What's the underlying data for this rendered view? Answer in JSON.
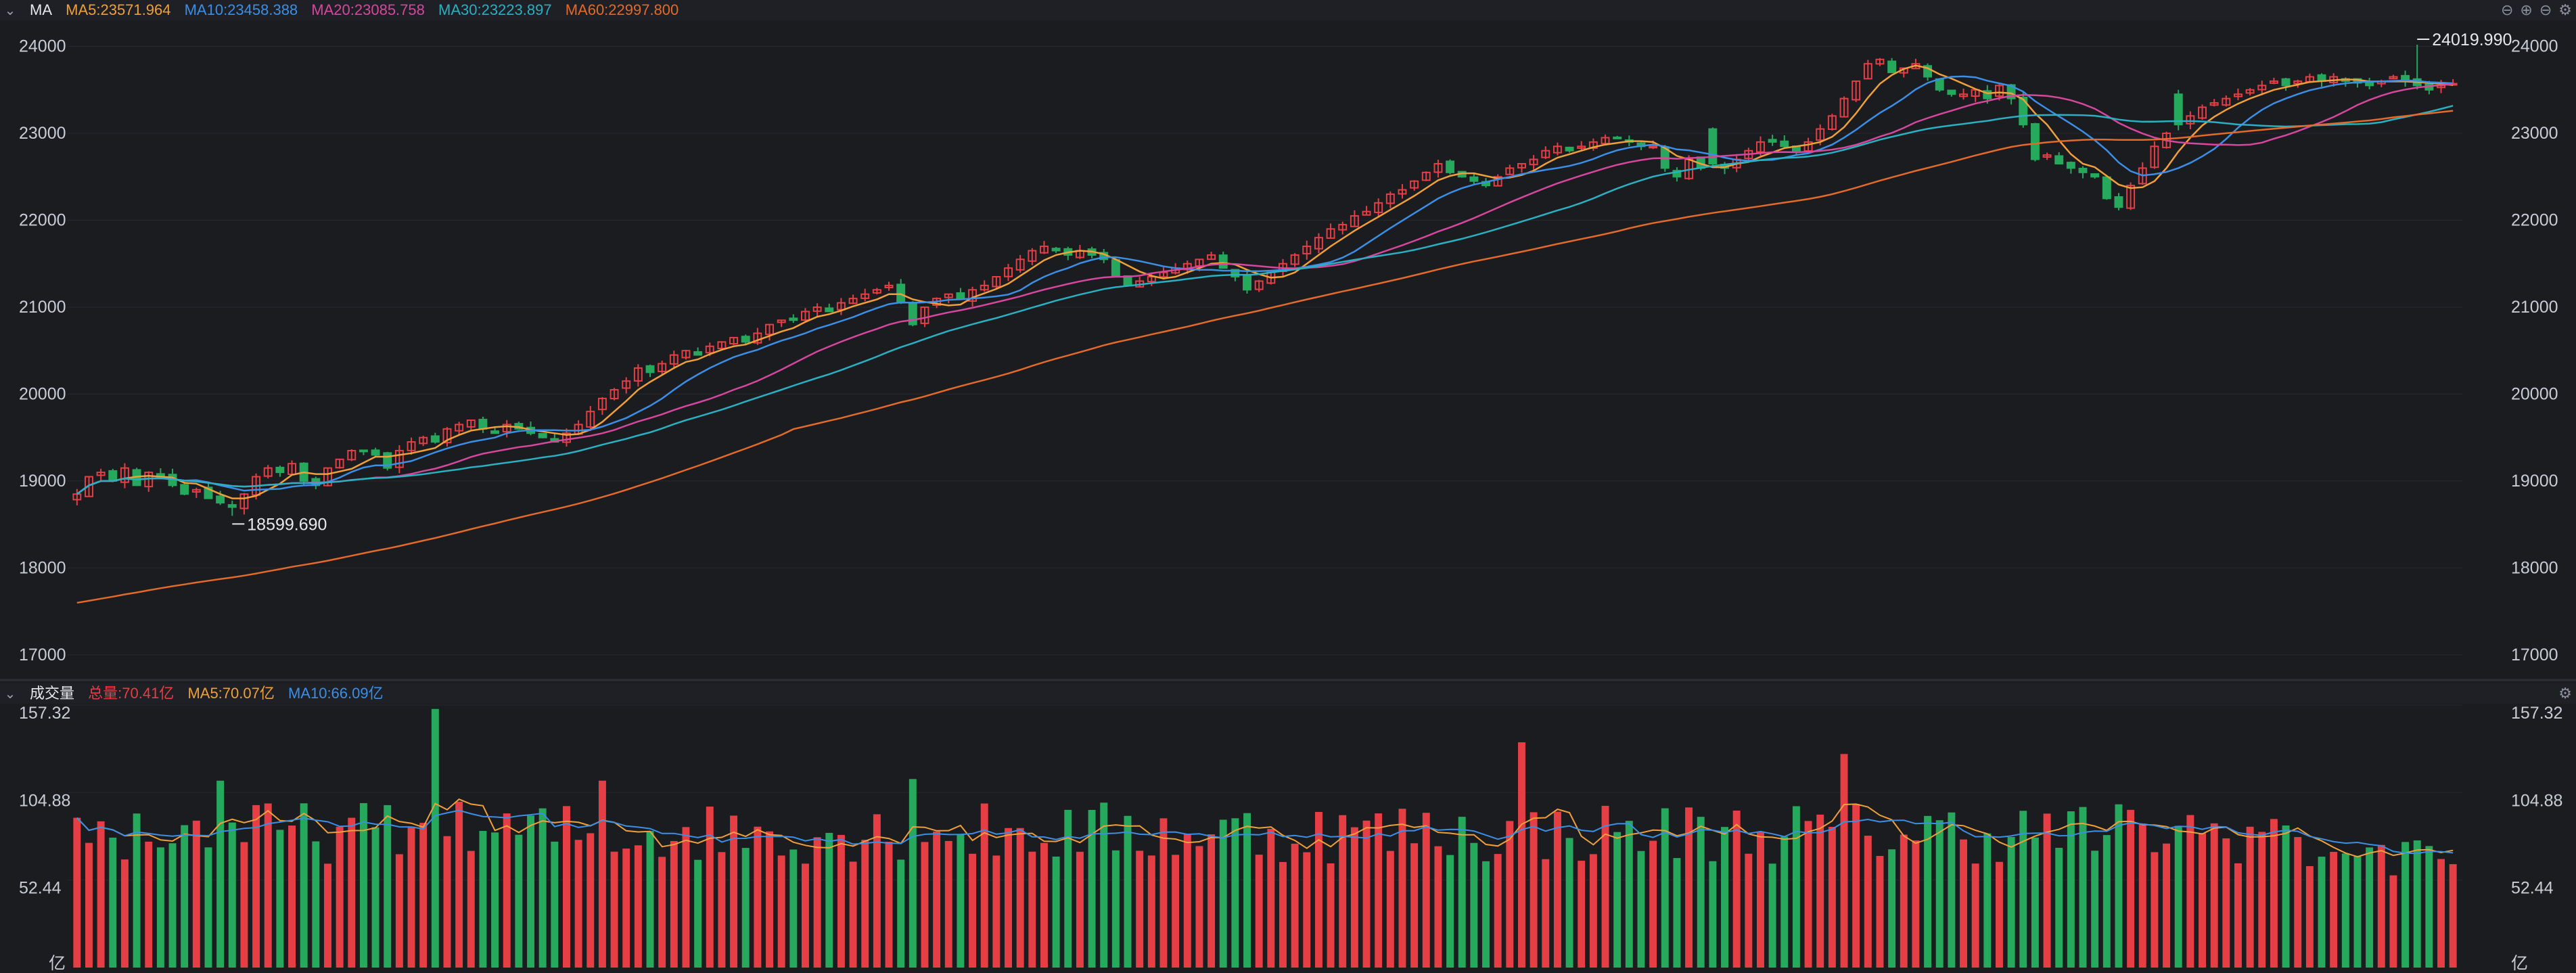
{
  "colors": {
    "up": "#e63e45",
    "down": "#26a85d",
    "ma5": "#f0a03a",
    "ma10": "#3b8fe6",
    "ma20": "#d6479e",
    "ma30": "#2ab0c2",
    "ma60": "#e36a2a",
    "grid": "#26282e",
    "bg": "#1b1c20"
  },
  "price_panel": {
    "title": "MA",
    "legend": [
      {
        "key": "ma5",
        "label": "MA5:23571.964"
      },
      {
        "key": "ma10",
        "label": "MA10:23458.388"
      },
      {
        "key": "ma20",
        "label": "MA20:23085.758"
      },
      {
        "key": "ma30",
        "label": "MA30:23223.897"
      },
      {
        "key": "ma60",
        "label": "MA60:22997.800"
      }
    ],
    "icons": [
      "minus-circle-icon",
      "plus-circle-icon",
      "minus-circle-icon",
      "gear-icon"
    ]
  },
  "volume_panel": {
    "title": "成交量",
    "legend": [
      {
        "key": "up",
        "label": "总量:70.41亿"
      },
      {
        "key": "ma5",
        "label": "MA5:70.07亿"
      },
      {
        "key": "ma10",
        "label": "MA10:66.09亿"
      }
    ],
    "unit": "亿",
    "icons": [
      "gear-icon"
    ]
  },
  "chart_data": [
    {
      "type": "candlestick",
      "title": "MA",
      "y_ticks": [
        17000,
        18000,
        19000,
        20000,
        21000,
        22000,
        23000,
        24000
      ],
      "ylim": [
        16750,
        24300
      ],
      "annotations": [
        {
          "label": "18599.690",
          "index": 13,
          "kind": "low"
        },
        {
          "label": "24019.990",
          "index": 196,
          "kind": "high"
        }
      ],
      "series_names": [
        "MA5",
        "MA10",
        "MA20",
        "MA30",
        "MA60"
      ],
      "ma_windows": [
        5,
        10,
        20,
        30,
        60
      ],
      "closes": [
        18850,
        19050,
        19100,
        19000,
        19150,
        18950,
        19100,
        19050,
        18950,
        18850,
        18900,
        18800,
        18750,
        18700,
        18850,
        19050,
        19150,
        19100,
        19200,
        19000,
        18950,
        19150,
        19250,
        19350,
        19350,
        19300,
        19150,
        19350,
        19450,
        19500,
        19450,
        19600,
        19650,
        19700,
        19600,
        19550,
        19650,
        19600,
        19550,
        19500,
        19450,
        19550,
        19650,
        19800,
        19950,
        20050,
        20150,
        20300,
        20250,
        20350,
        20450,
        20500,
        20450,
        20550,
        20600,
        20650,
        20600,
        20700,
        20800,
        20850,
        20850,
        20950,
        21000,
        20950,
        21050,
        21100,
        21150,
        21200,
        21250,
        21050,
        20800,
        21000,
        21100,
        21150,
        21100,
        21200,
        21250,
        21350,
        21450,
        21550,
        21650,
        21700,
        21650,
        21600,
        21650,
        21600,
        21550,
        21350,
        21250,
        21300,
        21350,
        21400,
        21450,
        21500,
        21550,
        21600,
        21450,
        21350,
        21200,
        21300,
        21400,
        21500,
        21600,
        21700,
        21800,
        21900,
        21950,
        22050,
        22100,
        22200,
        22300,
        22350,
        22450,
        22550,
        22650,
        22550,
        22500,
        22450,
        22400,
        22500,
        22600,
        22650,
        22700,
        22800,
        22850,
        22800,
        22850,
        22900,
        22950,
        22950,
        22900,
        22850,
        22850,
        22600,
        22500,
        22700,
        22600,
        22650,
        22600,
        22700,
        22800,
        22900,
        22900,
        22850,
        22800,
        22900,
        23050,
        23200,
        23400,
        23600,
        23800,
        23850,
        23700,
        23750,
        23800,
        23650,
        23500,
        23450,
        23450,
        23500,
        23400,
        23550,
        23400,
        23100,
        22700,
        22750,
        22650,
        22600,
        22550,
        22500,
        22250,
        22150,
        22400,
        22600,
        22850,
        23000,
        23100,
        23200,
        23300,
        23350,
        23400,
        23450,
        23500,
        23550,
        23600,
        23550,
        23600,
        23650,
        23600,
        23650,
        23600,
        23580,
        23550,
        23600,
        23650,
        23600,
        23550,
        23500,
        23550,
        23572
      ],
      "x_range": [
        0,
        207
      ]
    },
    {
      "type": "bar",
      "title": "成交量",
      "unit": "亿",
      "y_ticks": [
        52.44,
        104.88,
        157.32
      ],
      "ylim": [
        0,
        157.32
      ],
      "series_names": [
        "总量",
        "MA5",
        "MA10"
      ]
    }
  ]
}
